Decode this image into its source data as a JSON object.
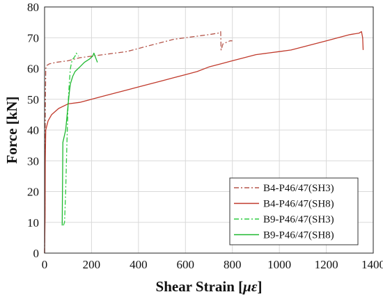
{
  "chart_data": {
    "type": "line",
    "title": "",
    "xlabel": "Shear Strain [",
    "xlabel_unit": "με",
    "xlabel_close": "]",
    "ylabel": "Force [kN]",
    "xlim": [
      0,
      1400
    ],
    "ylim": [
      0,
      80
    ],
    "xticks": [
      "0",
      "200",
      "400",
      "600",
      "800",
      "1000",
      "1200",
      "1400"
    ],
    "yticks": [
      "0",
      "10",
      "20",
      "30",
      "40",
      "50",
      "60",
      "70",
      "80"
    ],
    "grid": true,
    "legend_position": "bottom-right",
    "series": [
      {
        "name": "B4-P46/47(SH3)",
        "color": "#b5554a",
        "dash": "dashdot",
        "points": [
          [
            0,
            0
          ],
          [
            2,
            20
          ],
          [
            3,
            45
          ],
          [
            5,
            60
          ],
          [
            10,
            61
          ],
          [
            20,
            61.5
          ],
          [
            50,
            62
          ],
          [
            100,
            62.5
          ],
          [
            150,
            63.5
          ],
          [
            200,
            64
          ],
          [
            250,
            64.5
          ],
          [
            300,
            65
          ],
          [
            350,
            65.5
          ],
          [
            400,
            66.5
          ],
          [
            450,
            67.5
          ],
          [
            500,
            68.5
          ],
          [
            550,
            69.5
          ],
          [
            600,
            70
          ],
          [
            650,
            70.5
          ],
          [
            700,
            71
          ],
          [
            740,
            71.5
          ],
          [
            750,
            72
          ],
          [
            752,
            66
          ],
          [
            760,
            68
          ],
          [
            790,
            69
          ],
          [
            800,
            69
          ]
        ]
      },
      {
        "name": "B4-P46/47(SH8)",
        "color": "#c0392b",
        "dash": "solid",
        "points": [
          [
            0,
            0
          ],
          [
            2,
            12
          ],
          [
            3,
            30
          ],
          [
            5,
            40
          ],
          [
            15,
            43
          ],
          [
            30,
            45
          ],
          [
            60,
            47
          ],
          [
            100,
            48.5
          ],
          [
            150,
            49
          ],
          [
            200,
            50
          ],
          [
            250,
            51
          ],
          [
            300,
            52
          ],
          [
            350,
            53
          ],
          [
            400,
            54
          ],
          [
            450,
            55
          ],
          [
            500,
            56
          ],
          [
            550,
            57
          ],
          [
            600,
            58
          ],
          [
            650,
            59
          ],
          [
            700,
            60.5
          ],
          [
            750,
            61.5
          ],
          [
            800,
            62.5
          ],
          [
            850,
            63.5
          ],
          [
            900,
            64.5
          ],
          [
            950,
            65
          ],
          [
            1000,
            65.5
          ],
          [
            1050,
            66
          ],
          [
            1100,
            67
          ],
          [
            1150,
            68
          ],
          [
            1200,
            69
          ],
          [
            1250,
            70
          ],
          [
            1300,
            71
          ],
          [
            1340,
            71.5
          ],
          [
            1350,
            72
          ],
          [
            1355,
            70
          ],
          [
            1357,
            66
          ]
        ]
      },
      {
        "name": "B9-P46/47(SH3)",
        "color": "#2ecc40",
        "dash": "dashdot",
        "points": [
          [
            80,
            9
          ],
          [
            85,
            10
          ],
          [
            90,
            20
          ],
          [
            95,
            35
          ],
          [
            100,
            48
          ],
          [
            105,
            55
          ],
          [
            110,
            60
          ],
          [
            115,
            62
          ],
          [
            120,
            63
          ],
          [
            125,
            63.5
          ],
          [
            130,
            64
          ],
          [
            135,
            65
          ],
          [
            140,
            64.5
          ],
          [
            145,
            64
          ]
        ]
      },
      {
        "name": "B9-P46/47(SH8)",
        "color": "#1db82e",
        "dash": "solid",
        "points": [
          [
            75,
            9
          ],
          [
            78,
            36
          ],
          [
            90,
            40
          ],
          [
            100,
            48
          ],
          [
            105,
            52
          ],
          [
            110,
            55
          ],
          [
            120,
            57.5
          ],
          [
            130,
            59
          ],
          [
            150,
            60.5
          ],
          [
            170,
            62
          ],
          [
            190,
            63
          ],
          [
            205,
            64
          ],
          [
            210,
            65
          ],
          [
            215,
            64
          ],
          [
            220,
            63
          ],
          [
            225,
            62
          ]
        ]
      }
    ]
  }
}
